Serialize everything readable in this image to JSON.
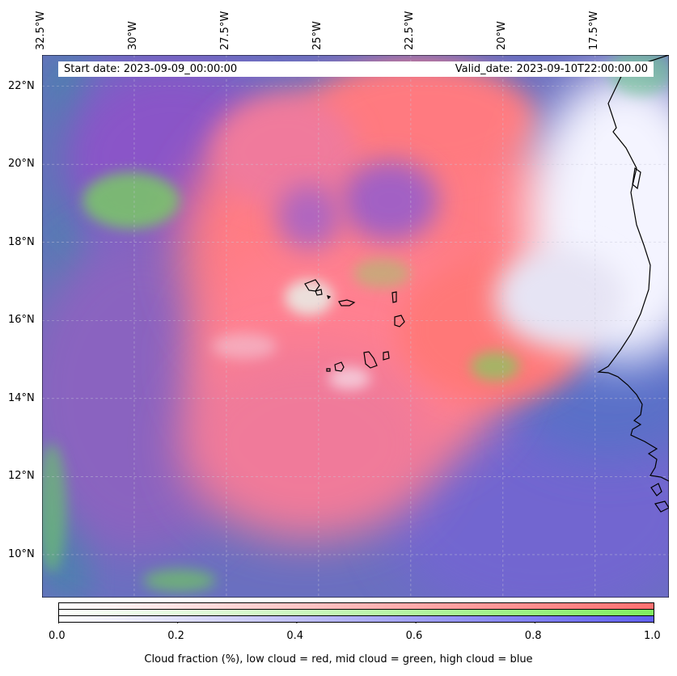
{
  "map": {
    "start_date": "Start date: 2023-09-09_00:00:00",
    "valid_date": "Valid_date: 2023-09-10T22:00:00.00",
    "lon_ticks": [
      {
        "label": "32.5°W",
        "value": -32.5
      },
      {
        "label": "30°W",
        "value": -30.0
      },
      {
        "label": "27.5°W",
        "value": -27.5
      },
      {
        "label": "25°W",
        "value": -25.0
      },
      {
        "label": "22.5°W",
        "value": -22.5
      },
      {
        "label": "20°W",
        "value": -20.0
      },
      {
        "label": "17.5°W",
        "value": -17.5
      }
    ],
    "lat_ticks": [
      {
        "label": "22°N",
        "value": 22
      },
      {
        "label": "20°N",
        "value": 20
      },
      {
        "label": "18°N",
        "value": 18
      },
      {
        "label": "16°N",
        "value": 16
      },
      {
        "label": "14°N",
        "value": 14
      },
      {
        "label": "12°N",
        "value": 12
      },
      {
        "label": "10°N",
        "value": 10
      }
    ],
    "extent": {
      "lon_min": -32.5,
      "lon_max": -15.5,
      "lat_min": 8.9,
      "lat_max": 22.8
    },
    "colors": {
      "low_cloud": "#ff7777",
      "mid_cloud": "#88e866",
      "high_cloud": "#7777ee",
      "ocean_base": "#5a78a8",
      "coastline": "#000000"
    }
  },
  "colorbar": {
    "ticks": [
      "0.0",
      "0.2",
      "0.4",
      "0.6",
      "0.8",
      "1.0"
    ],
    "tick_values": [
      0.0,
      0.2,
      0.4,
      0.6,
      0.8,
      1.0
    ],
    "label": "Cloud fraction (%), low cloud = red, mid cloud = green, high cloud = blue",
    "colors": {
      "low": "#ff7070",
      "mid": "#80ee60",
      "high": "#6060ee"
    }
  }
}
